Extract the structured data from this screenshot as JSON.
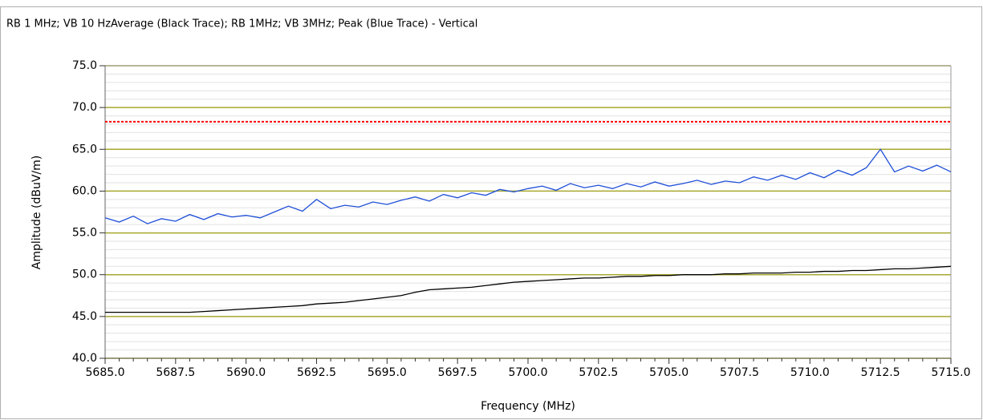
{
  "chart_data": {
    "type": "line",
    "title": "RB 1 MHz; VB 10 HzAverage (Black Trace); RB 1MHz; VB 3MHz; Peak (Blue Trace) - Vertical",
    "x_label": "Frequency (MHz)",
    "y_label": "Amplitude (dBuV/m)",
    "x": [
      5685,
      5685.5,
      5686,
      5686.5,
      5687,
      5687.5,
      5688,
      5688.5,
      5689,
      5689.5,
      5690,
      5690.5,
      5691,
      5691.5,
      5692,
      5692.5,
      5693,
      5693.5,
      5694,
      5694.5,
      5695,
      5695.5,
      5696,
      5696.5,
      5697,
      5697.5,
      5698,
      5698.5,
      5699,
      5699.5,
      5700,
      5700.5,
      5701,
      5701.5,
      5702,
      5702.5,
      5703,
      5703.5,
      5704,
      5704.5,
      5705,
      5705.5,
      5706,
      5706.5,
      5707,
      5707.5,
      5708,
      5708.5,
      5709,
      5709.5,
      5710,
      5710.5,
      5711,
      5711.5,
      5712,
      5712.5,
      5713,
      5713.5,
      5714,
      5714.5,
      5715
    ],
    "series": [
      {
        "color": "#1f4fd8",
        "values": [
          56.8,
          56.3,
          57.0,
          56.1,
          56.7,
          56.4,
          57.2,
          56.6,
          57.3,
          56.9,
          57.1,
          56.8,
          57.5,
          58.2,
          57.6,
          59.0,
          57.9,
          58.3,
          58.1,
          58.7,
          58.4,
          58.9,
          59.3,
          58.8,
          59.6,
          59.2,
          59.8,
          59.5,
          60.2,
          59.9,
          60.3,
          60.6,
          60.1,
          60.9,
          60.4,
          60.7,
          60.3,
          60.9,
          60.5,
          61.1,
          60.6,
          60.9,
          61.3,
          60.8,
          61.2,
          61.0,
          61.7,
          61.3,
          61.9,
          61.4,
          62.2,
          61.6,
          62.5,
          61.9,
          62.8,
          65.0,
          62.3,
          63.0,
          62.4,
          63.1,
          62.3
        ]
      },
      {
        "color": "#000000",
        "values": [
          45.5,
          45.5,
          45.5,
          45.5,
          45.5,
          45.5,
          45.5,
          45.6,
          45.7,
          45.8,
          45.9,
          46.0,
          46.1,
          46.2,
          46.3,
          46.5,
          46.6,
          46.7,
          46.9,
          47.1,
          47.3,
          47.5,
          47.9,
          48.2,
          48.3,
          48.4,
          48.5,
          48.7,
          48.9,
          49.1,
          49.2,
          49.3,
          49.4,
          49.5,
          49.6,
          49.6,
          49.7,
          49.8,
          49.8,
          49.9,
          49.9,
          50.0,
          50.0,
          50.0,
          50.1,
          50.1,
          50.2,
          50.2,
          50.2,
          50.3,
          50.3,
          50.4,
          50.4,
          50.5,
          50.5,
          50.6,
          50.7,
          50.7,
          50.8,
          50.9,
          51.0
        ]
      }
    ],
    "reference_lines": [
      {
        "value": 68.3,
        "color": "#ff0000"
      }
    ],
    "xlim": [
      5685,
      5715
    ],
    "ylim": [
      40,
      75
    ],
    "xticks": [
      {
        "value": 5685,
        "label": "5685.0"
      },
      {
        "value": 5687.5,
        "label": "5687.5"
      },
      {
        "value": 5690,
        "label": "5690.0"
      },
      {
        "value": 5692.5,
        "label": "5692.5"
      },
      {
        "value": 5695,
        "label": "5695.0"
      },
      {
        "value": 5697.5,
        "label": "5697.5"
      },
      {
        "value": 5700,
        "label": "5700.0"
      },
      {
        "value": 5702.5,
        "label": "5702.5"
      },
      {
        "value": 5705,
        "label": "5705.0"
      },
      {
        "value": 5707.5,
        "label": "5707.5"
      },
      {
        "value": 5710,
        "label": "5710.0"
      },
      {
        "value": 5712.5,
        "label": "5712.5"
      },
      {
        "value": 5715,
        "label": "5715.0"
      }
    ],
    "yticks": [
      {
        "value": 40,
        "label": "40.0"
      },
      {
        "value": 45,
        "label": "45.0"
      },
      {
        "value": 50,
        "label": "50.0"
      },
      {
        "value": 55,
        "label": "55.0"
      },
      {
        "value": 60,
        "label": "60.0"
      },
      {
        "value": 65,
        "label": "65.0"
      },
      {
        "value": 70,
        "label": "70.0"
      },
      {
        "value": 75,
        "label": "75.0"
      }
    ],
    "x_minor_ticks": [
      5685.5,
      5686,
      5686.5,
      5687,
      5688,
      5688.5,
      5689,
      5689.5,
      5690.5,
      5691,
      5691.5,
      5692,
      5693,
      5693.5,
      5694,
      5694.5,
      5695.5,
      5696,
      5696.5,
      5697,
      5698,
      5698.5,
      5699,
      5699.5,
      5700.5,
      5701,
      5701.5,
      5702,
      5703,
      5703.5,
      5704,
      5704.5,
      5705.5,
      5706,
      5706.5,
      5707,
      5708,
      5708.5,
      5709,
      5709.5,
      5710.5,
      5711,
      5711.5,
      5712,
      5713,
      5713.5,
      5714,
      5714.5
    ],
    "y_minor_ticks": [
      41,
      42,
      43,
      44,
      46,
      47,
      48,
      49,
      51,
      52,
      53,
      54,
      56,
      57,
      58,
      59,
      61,
      62,
      63,
      64,
      66,
      67,
      68,
      69,
      71,
      72,
      73,
      74
    ],
    "grid": true,
    "grid_color": "#a8a830",
    "minor_grid_color": "#e2e2e2"
  }
}
